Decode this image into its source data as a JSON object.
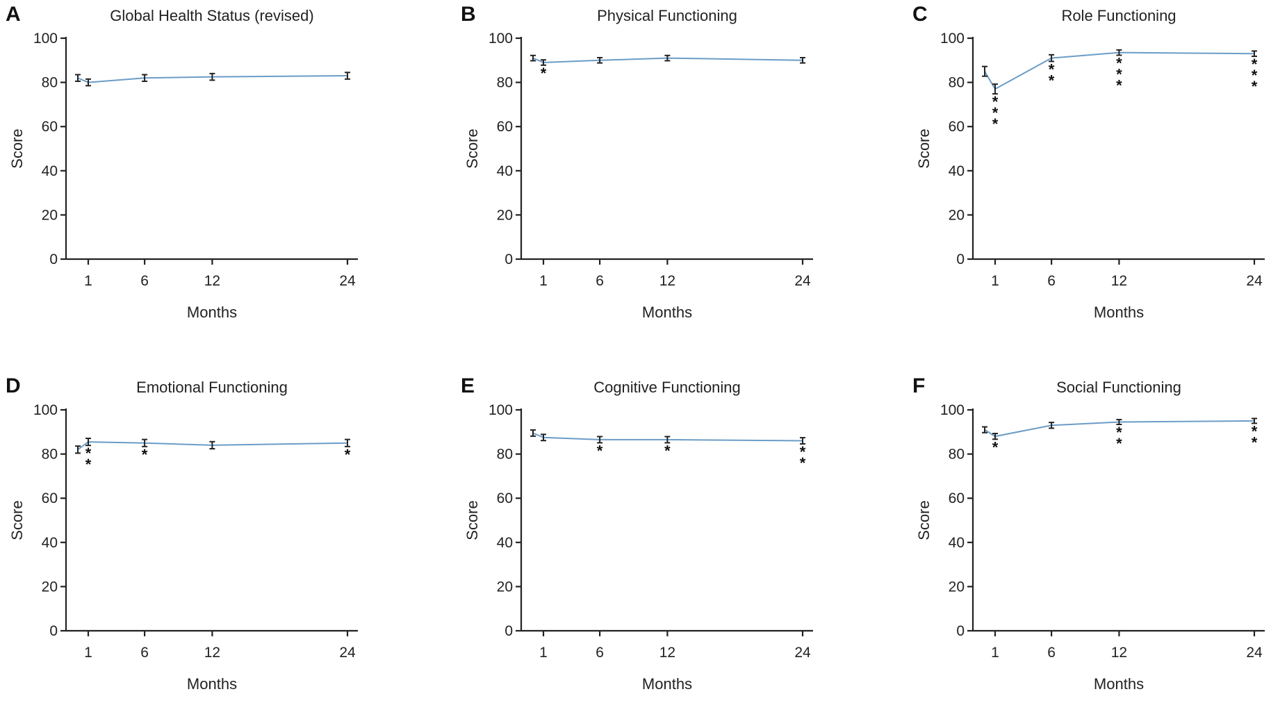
{
  "chart_data": [
    {
      "type": "line",
      "panel_label": "A",
      "title": "Global Health Status (revised)",
      "xlabel": "Months",
      "ylabel": "Score",
      "ylim": [
        0,
        100
      ],
      "yticks": [
        0,
        20,
        40,
        60,
        80,
        100
      ],
      "xticks": [
        "1",
        "6",
        "12",
        "24"
      ],
      "x": [
        0,
        1,
        6,
        12,
        24
      ],
      "values": [
        82,
        80,
        82,
        82.5,
        83
      ],
      "errors": [
        1.5,
        1.5,
        1.5,
        1.5,
        1.5
      ],
      "significance": [
        "",
        "",
        "",
        "",
        ""
      ]
    },
    {
      "type": "line",
      "panel_label": "B",
      "title": "Physical Functioning",
      "xlabel": "Months",
      "ylabel": "Score",
      "ylim": [
        0,
        100
      ],
      "yticks": [
        0,
        20,
        40,
        60,
        80,
        100
      ],
      "xticks": [
        "1",
        "6",
        "12",
        "24"
      ],
      "x": [
        0,
        1,
        6,
        12,
        24
      ],
      "values": [
        91,
        89,
        90,
        91,
        90
      ],
      "errors": [
        1.2,
        1.2,
        1.2,
        1.2,
        1.2
      ],
      "significance": [
        "",
        "*",
        "",
        "",
        ""
      ]
    },
    {
      "type": "line",
      "panel_label": "C",
      "title": "Role Functioning",
      "xlabel": "Months",
      "ylabel": "Score",
      "ylim": [
        0,
        100
      ],
      "yticks": [
        0,
        20,
        40,
        60,
        80,
        100
      ],
      "xticks": [
        "1",
        "6",
        "12",
        "24"
      ],
      "x": [
        0,
        1,
        6,
        12,
        24
      ],
      "values": [
        85,
        77,
        91,
        93.5,
        93
      ],
      "errors": [
        2.2,
        2.2,
        1.5,
        1.2,
        1.2
      ],
      "significance": [
        "",
        "***",
        "**",
        "***",
        "***"
      ]
    },
    {
      "type": "line",
      "panel_label": "D",
      "title": "Emotional Functioning",
      "xlabel": "Months",
      "ylabel": "Score",
      "ylim": [
        0,
        100
      ],
      "yticks": [
        0,
        20,
        40,
        60,
        80,
        100
      ],
      "xticks": [
        "1",
        "6",
        "12",
        "24"
      ],
      "x": [
        0,
        1,
        6,
        12,
        24
      ],
      "values": [
        82,
        85.5,
        85,
        84,
        85
      ],
      "errors": [
        1.6,
        1.6,
        1.6,
        1.6,
        1.6
      ],
      "significance": [
        "",
        "**",
        "*",
        "",
        "*"
      ]
    },
    {
      "type": "line",
      "panel_label": "E",
      "title": "Cognitive Functioning",
      "xlabel": "Months",
      "ylabel": "Score",
      "ylim": [
        0,
        100
      ],
      "yticks": [
        0,
        20,
        40,
        60,
        80,
        100
      ],
      "xticks": [
        "1",
        "6",
        "12",
        "24"
      ],
      "x": [
        0,
        1,
        6,
        12,
        24
      ],
      "values": [
        89.5,
        87.5,
        86.5,
        86.5,
        86
      ],
      "errors": [
        1.4,
        1.4,
        1.4,
        1.4,
        1.4
      ],
      "significance": [
        "",
        "",
        "*",
        "*",
        "**"
      ]
    },
    {
      "type": "line",
      "panel_label": "F",
      "title": "Social Functioning",
      "xlabel": "Months",
      "ylabel": "Score",
      "ylim": [
        0,
        100
      ],
      "yticks": [
        0,
        20,
        40,
        60,
        80,
        100
      ],
      "xticks": [
        "1",
        "6",
        "12",
        "24"
      ],
      "x": [
        0,
        1,
        6,
        12,
        24
      ],
      "values": [
        91,
        88,
        93,
        94.5,
        95
      ],
      "errors": [
        1.3,
        1.3,
        1.3,
        1.1,
        1.1
      ],
      "significance": [
        "",
        "*",
        "",
        "**",
        "**"
      ]
    }
  ],
  "colors": {
    "series": "#6b9cc7",
    "axis": "#222222"
  }
}
